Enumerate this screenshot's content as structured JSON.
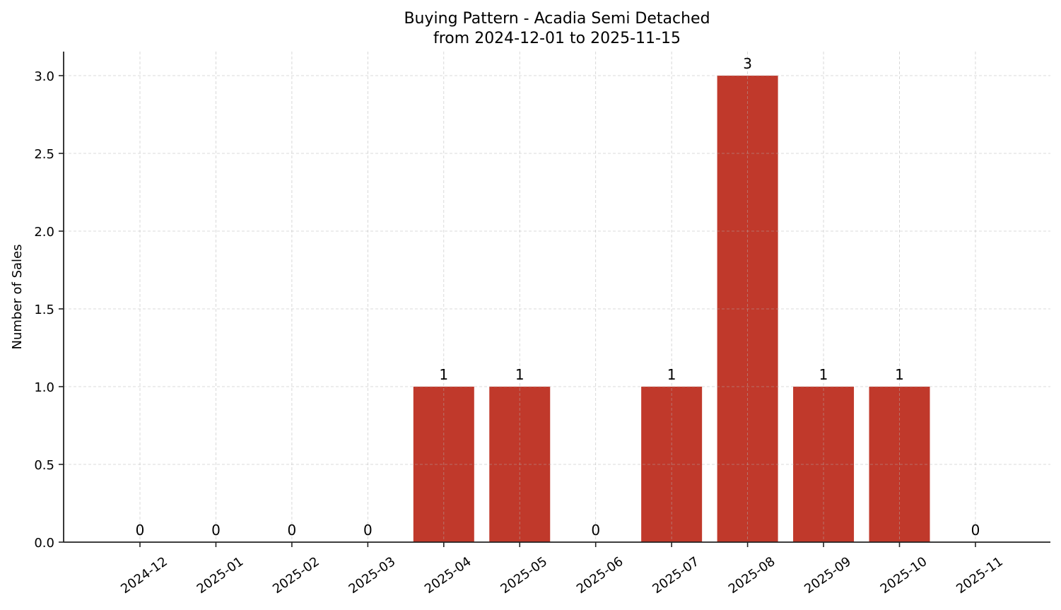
{
  "chart_data": {
    "type": "bar",
    "title": "Buying Pattern - Acadia Semi Detached",
    "subtitle": "from 2024-12-01 to 2025-11-15",
    "xlabel": "",
    "ylabel": "Number of Sales",
    "categories": [
      "2024-12",
      "2025-01",
      "2025-02",
      "2025-03",
      "2025-04",
      "2025-05",
      "2025-06",
      "2025-07",
      "2025-08",
      "2025-09",
      "2025-10",
      "2025-11"
    ],
    "values": [
      0,
      0,
      0,
      0,
      1,
      1,
      0,
      1,
      3,
      1,
      1,
      0
    ],
    "data_labels": [
      "0",
      "0",
      "0",
      "0",
      "1",
      "1",
      "0",
      "1",
      "3",
      "1",
      "1",
      "0"
    ],
    "ylim": [
      0,
      3.15
    ],
    "yticks": [
      0.0,
      0.5,
      1.0,
      1.5,
      2.0,
      2.5,
      3.0
    ],
    "ytick_labels": [
      "0.0",
      "0.5",
      "1.0",
      "1.5",
      "2.0",
      "2.5",
      "3.0"
    ],
    "grid": true,
    "grid_style": "dashed",
    "legend": null,
    "bar_color": "#C0392B",
    "xtick_rotation": 35
  }
}
